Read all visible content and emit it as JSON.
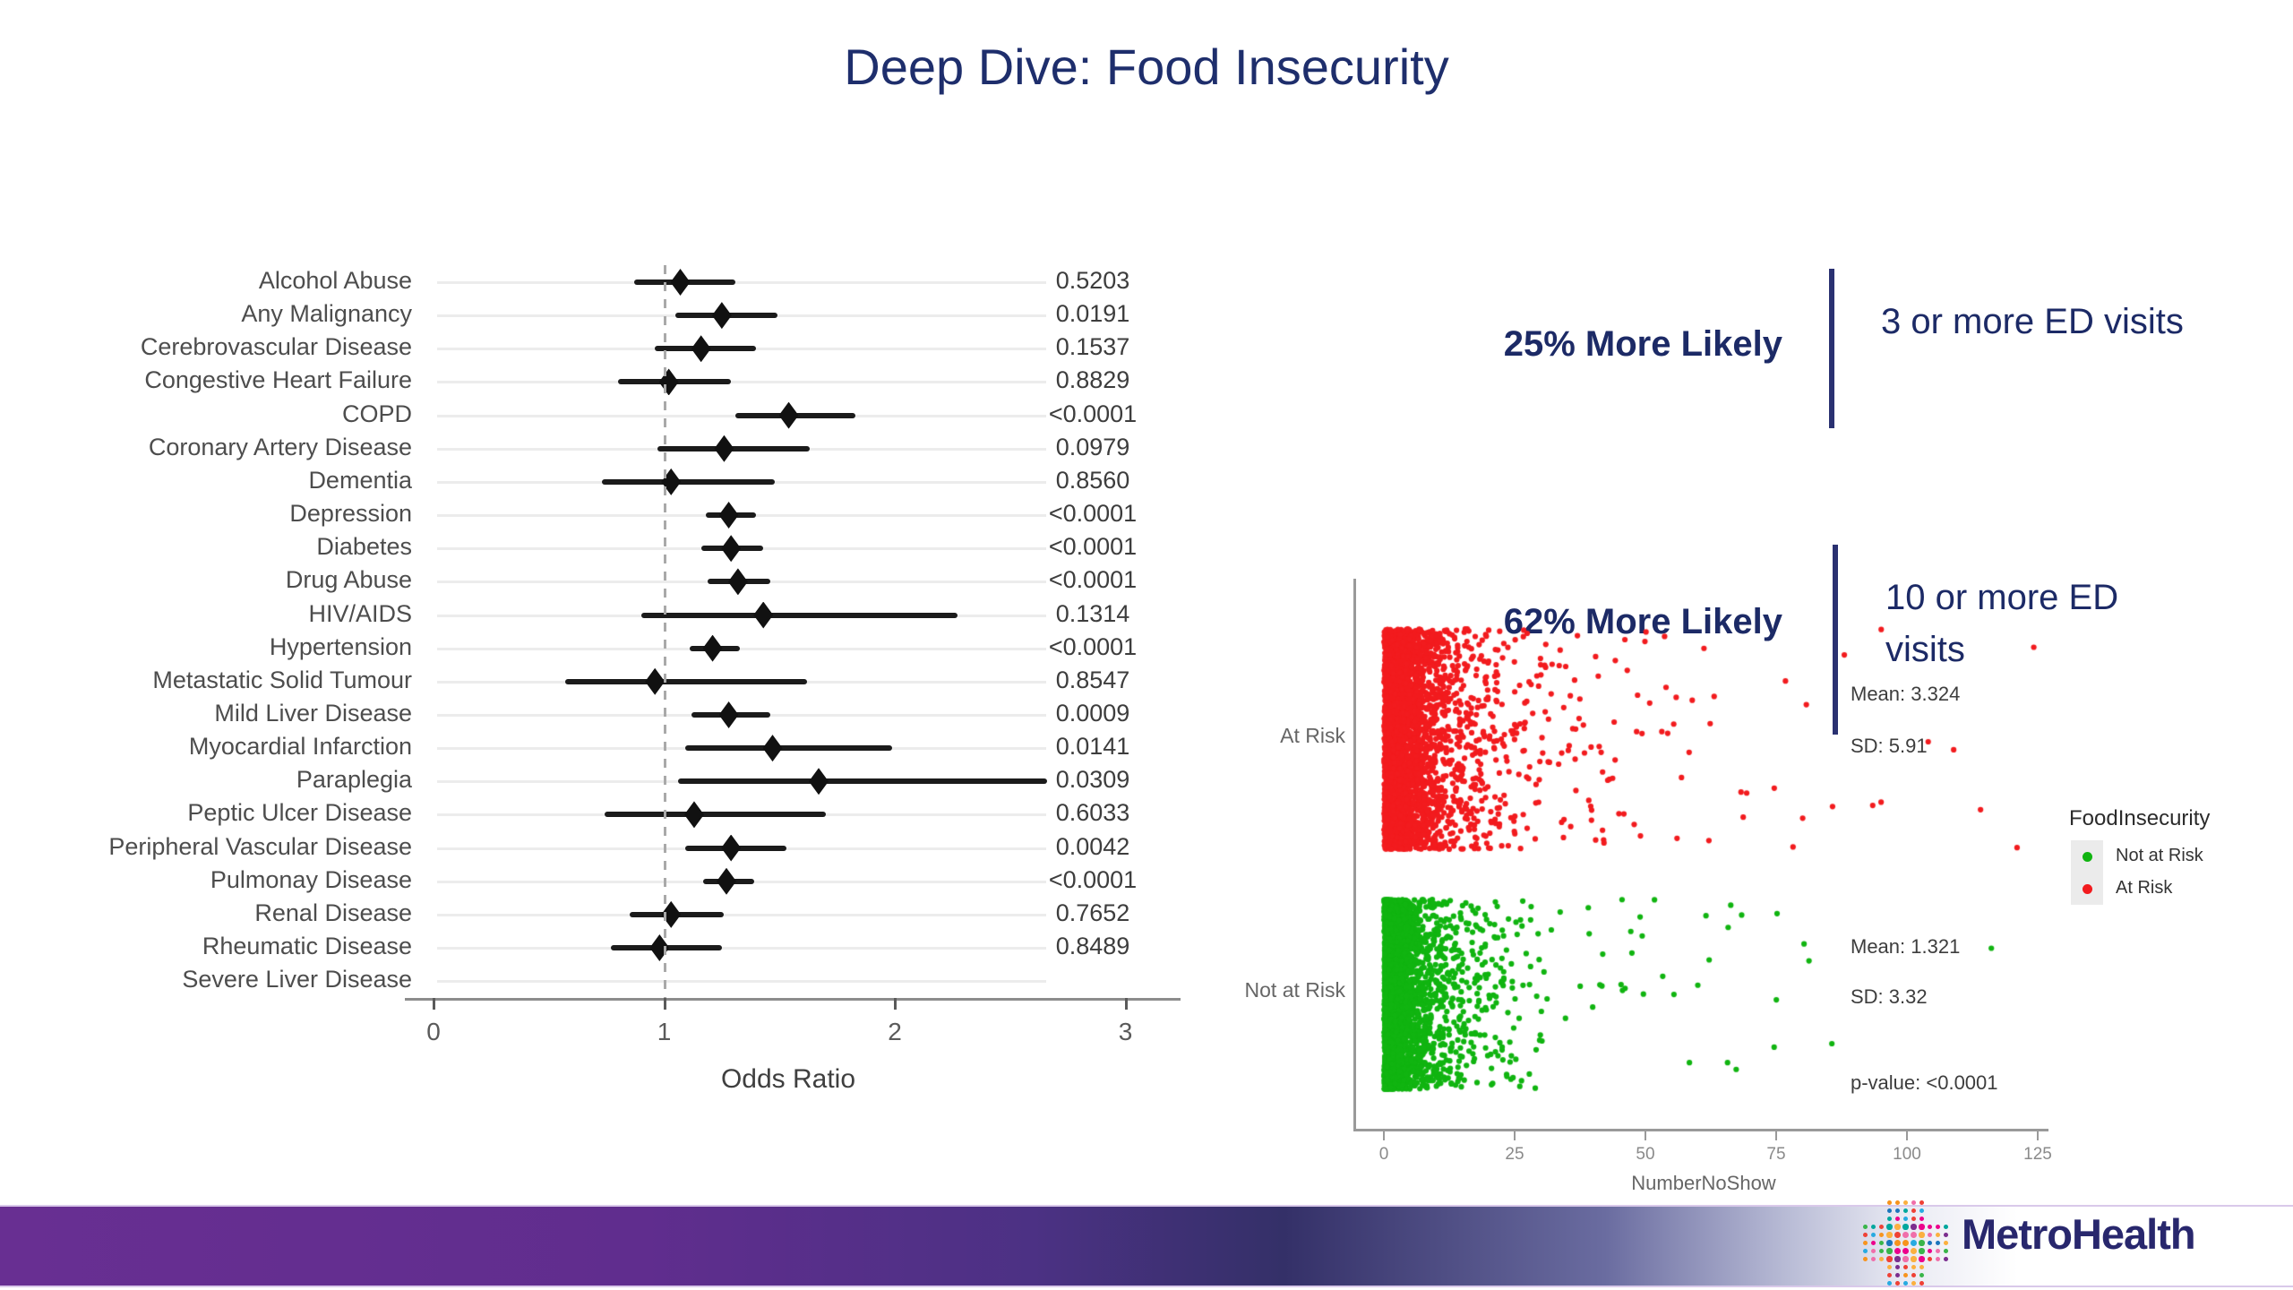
{
  "slide": {
    "title": "Deep Dive: Food Insecurity"
  },
  "callouts": [
    {
      "stat": "25% More Likely",
      "desc": "3 or more ED visits"
    },
    {
      "stat": "62% More Likely",
      "desc": "10 or more ED visits"
    }
  ],
  "logo": {
    "text": "MetroHealth"
  },
  "colors": {
    "navy_text": "#1c2a66",
    "at_risk_red": "#f21b1e",
    "not_at_risk_green": "#10b410",
    "footer_purple": "#682f92",
    "footer_indigo": "#343068"
  },
  "chart_data": [
    {
      "type": "forest",
      "title": "",
      "xlabel": "Odds Ratio",
      "x_ticks": [
        0,
        1,
        2,
        3
      ],
      "xlim": [
        -0.12,
        3.25
      ],
      "reference_line": 1,
      "grid": "horizontal-light",
      "rows": [
        {
          "label": "Alcohol Abuse",
          "or": 1.07,
          "lo": 0.87,
          "hi": 1.31,
          "p": "0.5203"
        },
        {
          "label": "Any Malignancy",
          "or": 1.25,
          "lo": 1.05,
          "hi": 1.49,
          "p": "0.0191"
        },
        {
          "label": "Cerebrovascular Disease",
          "or": 1.16,
          "lo": 0.96,
          "hi": 1.4,
          "p": "0.1537"
        },
        {
          "label": "Congestive Heart Failure",
          "or": 1.02,
          "lo": 0.8,
          "hi": 1.29,
          "p": "0.8829"
        },
        {
          "label": "COPD",
          "or": 1.54,
          "lo": 1.31,
          "hi": 1.83,
          "p": "<0.0001"
        },
        {
          "label": "Coronary Artery Disease",
          "or": 1.26,
          "lo": 0.97,
          "hi": 1.63,
          "p": "0.0979"
        },
        {
          "label": "Dementia",
          "or": 1.03,
          "lo": 0.73,
          "hi": 1.48,
          "p": "0.8560"
        },
        {
          "label": "Depression",
          "or": 1.28,
          "lo": 1.18,
          "hi": 1.4,
          "p": "<0.0001"
        },
        {
          "label": "Diabetes",
          "or": 1.29,
          "lo": 1.16,
          "hi": 1.43,
          "p": "<0.0001"
        },
        {
          "label": "Drug Abuse",
          "or": 1.32,
          "lo": 1.19,
          "hi": 1.46,
          "p": "<0.0001"
        },
        {
          "label": "HIV/AIDS",
          "or": 1.43,
          "lo": 0.9,
          "hi": 2.27,
          "p": "0.1314"
        },
        {
          "label": "Hypertension",
          "or": 1.21,
          "lo": 1.11,
          "hi": 1.33,
          "p": "<0.0001"
        },
        {
          "label": "Metastatic Solid Tumour",
          "or": 0.96,
          "lo": 0.57,
          "hi": 1.62,
          "p": "0.8547"
        },
        {
          "label": "Mild Liver Disease",
          "or": 1.28,
          "lo": 1.12,
          "hi": 1.46,
          "p": "0.0009"
        },
        {
          "label": "Myocardial Infarction",
          "or": 1.47,
          "lo": 1.09,
          "hi": 1.99,
          "p": "0.0141"
        },
        {
          "label": "Paraplegia",
          "or": 1.67,
          "lo": 1.06,
          "hi": 2.66,
          "p": "0.0309"
        },
        {
          "label": "Peptic Ulcer Disease",
          "or": 1.13,
          "lo": 0.74,
          "hi": 1.7,
          "p": "0.6033"
        },
        {
          "label": "Peripheral Vascular Disease",
          "or": 1.29,
          "lo": 1.09,
          "hi": 1.53,
          "p": "0.0042"
        },
        {
          "label": "Pulmonay Disease",
          "or": 1.27,
          "lo": 1.17,
          "hi": 1.39,
          "p": "<0.0001"
        },
        {
          "label": "Renal Disease",
          "or": 1.03,
          "lo": 0.85,
          "hi": 1.26,
          "p": "0.7652"
        },
        {
          "label": "Rheumatic Disease",
          "or": 0.98,
          "lo": 0.77,
          "hi": 1.25,
          "p": "0.8489"
        },
        {
          "label": "Severe Liver Disease",
          "or": null,
          "lo": null,
          "hi": null,
          "p": ""
        }
      ]
    },
    {
      "type": "scatter-jitter",
      "xlabel": "NumberNoShow",
      "x_ticks": [
        0,
        25,
        50,
        75,
        100,
        125
      ],
      "xlim": [
        0,
        130
      ],
      "groups": [
        {
          "label": "At Risk",
          "color": "#f21b1e",
          "mean": 3.324,
          "sd": 5.91,
          "annotations": [
            "Mean: 3.324",
            "SD: 5.91"
          ],
          "outliers_x": [
            88,
            95,
            104,
            114,
            121
          ]
        },
        {
          "label": "Not at Risk",
          "color": "#10b410",
          "mean": 1.321,
          "sd": 3.32,
          "annotations": [
            "Mean: 1.321",
            "SD: 3.32"
          ],
          "outliers_x": [
            60,
            66,
            75,
            81,
            116
          ]
        }
      ],
      "p_value_label": "p-value:  <0.0001",
      "legend": {
        "title": "FoodInsecurity",
        "entries": [
          {
            "label": "Not at Risk",
            "color": "#10b410"
          },
          {
            "label": "At Risk",
            "color": "#f21b1e"
          }
        ]
      }
    }
  ]
}
